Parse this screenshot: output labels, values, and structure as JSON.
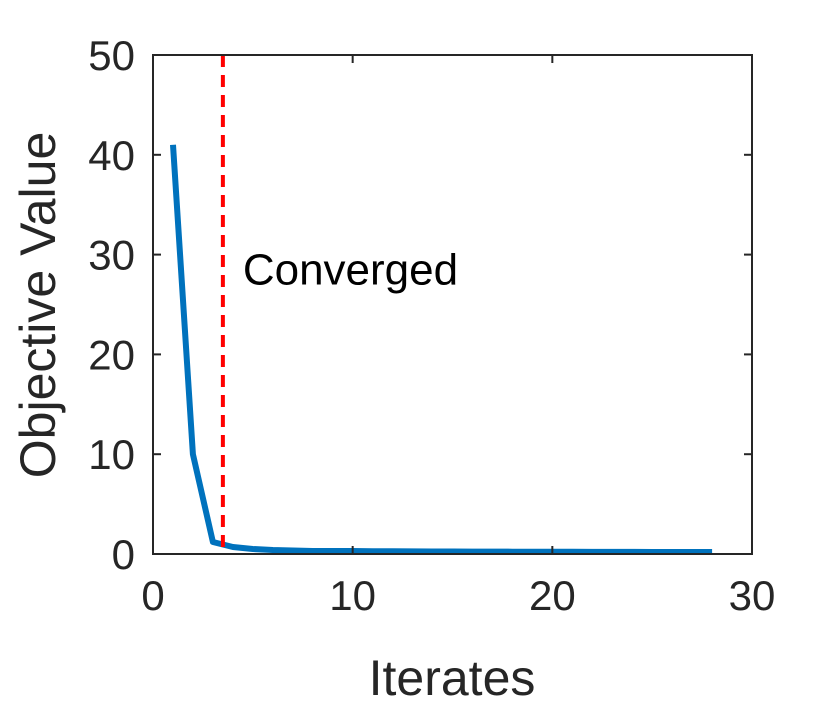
{
  "chart_data": {
    "type": "line",
    "title": "",
    "xlabel": "Iterates",
    "ylabel": "Objective Value",
    "xlim": [
      0,
      30
    ],
    "ylim": [
      0,
      50
    ],
    "xticks": [
      "0",
      "10",
      "20",
      "30"
    ],
    "yticks": [
      "0",
      "10",
      "20",
      "30",
      "40",
      "50"
    ],
    "grid": false,
    "series": [
      {
        "x": [
          1,
          2,
          3,
          4,
          5,
          6,
          7,
          8,
          9,
          10,
          11,
          12,
          13,
          14,
          15,
          16,
          17,
          18,
          19,
          20,
          21,
          22,
          23,
          24,
          25,
          26,
          27,
          28
        ],
        "values": [
          41,
          10,
          1.2,
          0.7,
          0.5,
          0.4,
          0.35,
          0.3,
          0.3,
          0.3,
          0.28,
          0.27,
          0.26,
          0.25,
          0.25,
          0.24,
          0.24,
          0.23,
          0.23,
          0.22,
          0.22,
          0.21,
          0.21,
          0.21,
          0.2,
          0.2,
          0.2,
          0.2
        ],
        "color": "#0072BD"
      }
    ],
    "convergence_line": {
      "x": 3.5,
      "color": "#FF0000",
      "style": "dashed"
    },
    "annotation": {
      "text": "Converged",
      "x": 4.5,
      "y": 27
    }
  }
}
